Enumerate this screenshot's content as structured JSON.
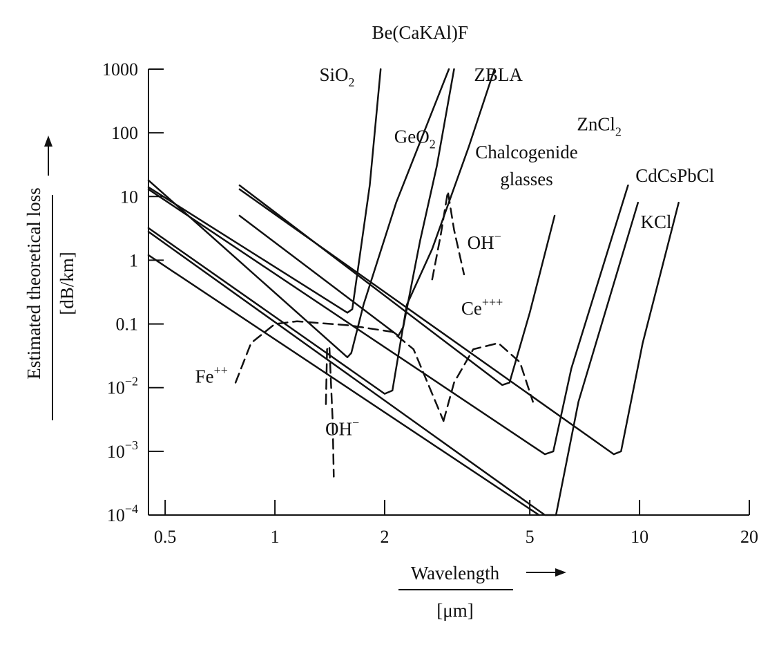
{
  "chart_data": {
    "type": "line",
    "title": "",
    "xlabel": "Wavelength",
    "xunit": "[μm]",
    "ylabel": "Estimated theoretical loss",
    "yunit": "[dB/km]",
    "x_scale": "log",
    "y_scale": "log",
    "xlim": [
      0.45,
      20
    ],
    "ylim": [
      0.0001,
      1000
    ],
    "grid": false,
    "legend": "none (curves labelled directly)",
    "x_ticks": [
      {
        "value": 0.5,
        "label": "0.5"
      },
      {
        "value": 1,
        "label": "1"
      },
      {
        "value": 2,
        "label": "2"
      },
      {
        "value": 5,
        "label": "5"
      },
      {
        "value": 10,
        "label": "10"
      },
      {
        "value": 20,
        "label": "20"
      }
    ],
    "y_ticks": [
      {
        "value": 0.0001,
        "base": "10",
        "exp": "−4"
      },
      {
        "value": 0.001,
        "base": "10",
        "exp": "−3"
      },
      {
        "value": 0.01,
        "base": "10",
        "exp": "−2"
      },
      {
        "value": 0.1,
        "base": "0.1",
        "exp": ""
      },
      {
        "value": 1,
        "base": "1",
        "exp": ""
      },
      {
        "value": 10,
        "base": "10",
        "exp": ""
      },
      {
        "value": 100,
        "base": "100",
        "exp": ""
      },
      {
        "value": 1000,
        "base": "1000",
        "exp": ""
      }
    ],
    "series": [
      {
        "name": "SiO2",
        "style": "solid",
        "points": [
          [
            0.45,
            14
          ],
          [
            1.58,
            0.15
          ],
          [
            1.63,
            0.17
          ],
          [
            1.72,
            1.5
          ],
          [
            1.82,
            15
          ],
          [
            1.95,
            1000
          ]
        ]
      },
      {
        "name": "Be(CaKAl)F",
        "style": "solid",
        "points": [
          [
            0.8,
            5
          ],
          [
            2.18,
            0.065
          ],
          [
            2.25,
            0.09
          ],
          [
            2.5,
            2
          ],
          [
            2.78,
            30
          ],
          [
            3.1,
            1000
          ]
        ]
      },
      {
        "name": "GeO2",
        "style": "solid",
        "points": [
          [
            0.45,
            18
          ],
          [
            1.58,
            0.03
          ],
          [
            1.62,
            0.035
          ],
          [
            1.75,
            0.2
          ],
          [
            2.15,
            8
          ],
          [
            3.0,
            1000
          ]
        ]
      },
      {
        "name": "ZBLA",
        "style": "solid",
        "points": [
          [
            0.45,
            3.2
          ],
          [
            2.0,
            0.008
          ],
          [
            2.1,
            0.009
          ],
          [
            2.3,
            0.2
          ],
          [
            2.7,
            1.5
          ],
          [
            3.4,
            60
          ],
          [
            4.0,
            1000
          ]
        ]
      },
      {
        "name": "Chalcogenide glasses",
        "style": "solid",
        "points": [
          [
            0.8,
            15
          ],
          [
            4.2,
            0.011
          ],
          [
            4.4,
            0.012
          ],
          [
            5.0,
            0.15
          ],
          [
            5.85,
            5
          ]
        ]
      },
      {
        "name": "ZnCl2",
        "style": "solid",
        "points": [
          [
            0.45,
            13
          ],
          [
            5.5,
            0.0009
          ],
          [
            5.8,
            0.001
          ],
          [
            6.5,
            0.02
          ],
          [
            9.3,
            15
          ]
        ]
      },
      {
        "name": "CdCsPbCl",
        "style": "solid",
        "points": [
          [
            0.8,
            13
          ],
          [
            8.5,
            0.0009
          ],
          [
            8.9,
            0.001
          ],
          [
            10.2,
            0.05
          ],
          [
            12.8,
            8
          ]
        ]
      },
      {
        "name": "KCl",
        "style": "solid",
        "points": [
          [
            0.45,
            2.8
          ],
          [
            5.5,
            0.0001
          ],
          [
            5.9,
            0.0001
          ],
          [
            6.8,
            0.006
          ],
          [
            9.9,
            8
          ]
        ]
      },
      {
        "name": "",
        "style": "solid",
        "points": [
          [
            0.45,
            1.2
          ],
          [
            5.3,
            0.0001
          ]
        ]
      },
      {
        "name": "Fe++",
        "style": "dashed",
        "points": [
          [
            0.78,
            0.012
          ],
          [
            0.86,
            0.05
          ],
          [
            1.0,
            0.1
          ],
          [
            1.15,
            0.11
          ],
          [
            1.6,
            0.095
          ],
          [
            2.1,
            0.075
          ],
          [
            2.4,
            0.04
          ],
          [
            2.7,
            0.008
          ],
          [
            2.9,
            0.003
          ]
        ]
      },
      {
        "name": "Ce+++",
        "style": "dashed",
        "points": [
          [
            2.9,
            0.003
          ],
          [
            3.1,
            0.012
          ],
          [
            3.5,
            0.04
          ],
          [
            4.1,
            0.05
          ],
          [
            4.7,
            0.025
          ],
          [
            5.1,
            0.006
          ]
        ]
      },
      {
        "name": "OH−",
        "style": "dashed",
        "points": [
          [
            1.38,
            0.0055
          ],
          [
            1.39,
            0.04
          ],
          [
            1.41,
            0.045
          ],
          [
            1.44,
            0.003
          ],
          [
            1.45,
            0.0004
          ]
        ]
      },
      {
        "name": "OH−",
        "style": "dashed",
        "points": [
          [
            2.7,
            0.5
          ],
          [
            2.85,
            2.5
          ],
          [
            2.98,
            12
          ],
          [
            3.1,
            3
          ],
          [
            3.3,
            0.6
          ]
        ]
      }
    ],
    "labels": [
      {
        "text": "Be(CaKAl)F",
        "sub": "",
        "sup": "",
        "x": 2.5,
        "y": 3000
      },
      {
        "text": "SiO",
        "sub": "2",
        "sup": "",
        "x": 1.48,
        "y": 650
      },
      {
        "text": "ZBLA",
        "sub": "",
        "sup": "",
        "x": 4.1,
        "y": 650
      },
      {
        "text": "GeO",
        "sub": "2",
        "sup": "",
        "x": 2.42,
        "y": 70
      },
      {
        "text": "ZnCl",
        "sub": "2",
        "sup": "",
        "x": 7.75,
        "y": 110
      },
      {
        "text": "Chalcogenide",
        "sub": "",
        "sup": "",
        "x": 4.9,
        "y": 40
      },
      {
        "text": "glasses",
        "sub": "",
        "sup": "",
        "x": 4.9,
        "y": 15
      },
      {
        "text": "CdCsPbCl",
        "sub": "",
        "sup": "",
        "x": 12.5,
        "y": 17
      },
      {
        "text": "OH",
        "sub": "",
        "sup": "−",
        "x": 3.75,
        "y": 1.5
      },
      {
        "text": "KCl",
        "sub": "",
        "sup": "",
        "x": 11.1,
        "y": 3.2
      },
      {
        "text": "Ce",
        "sub": "",
        "sup": "+++",
        "x": 3.7,
        "y": 0.14
      },
      {
        "text": "Fe",
        "sub": "",
        "sup": "++",
        "x": 0.67,
        "y": 0.012
      },
      {
        "text": "OH",
        "sub": "",
        "sup": "−",
        "x": 1.53,
        "y": 0.0018
      }
    ],
    "colors": {
      "ink": "#111111",
      "background": "#ffffff"
    }
  }
}
